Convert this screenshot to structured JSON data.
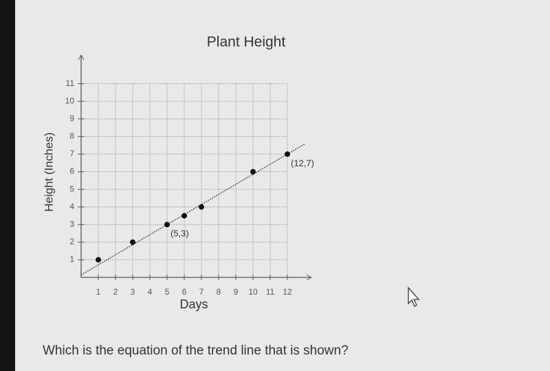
{
  "chart_data": {
    "type": "scatter",
    "title": "Plant Height",
    "x_label": "Days",
    "y_label": "Height (Inches)",
    "x": [
      1,
      3,
      5,
      6,
      7,
      10,
      12
    ],
    "values": [
      1,
      2,
      3,
      3.5,
      4,
      6,
      7
    ],
    "color": "#111111",
    "trend_line": {
      "x": [
        0,
        13
      ],
      "y": [
        0.14,
        7.57
      ],
      "color": "#555555"
    },
    "annotations": [
      {
        "text": "(5,3)",
        "x": 5,
        "y": 3
      },
      {
        "text": "(12,7)",
        "x": 12,
        "y": 7
      }
    ],
    "xlim": [
      0,
      13
    ],
    "ylim": [
      0,
      12
    ],
    "xticks": [
      1,
      2,
      3,
      4,
      5,
      6,
      7,
      8,
      9,
      10,
      11,
      12
    ],
    "yticks": [
      1,
      2,
      3,
      4,
      5,
      6,
      7,
      8,
      9,
      10,
      11
    ],
    "grid": true
  },
  "question": "Which is the equation of the trend line that is shown?"
}
